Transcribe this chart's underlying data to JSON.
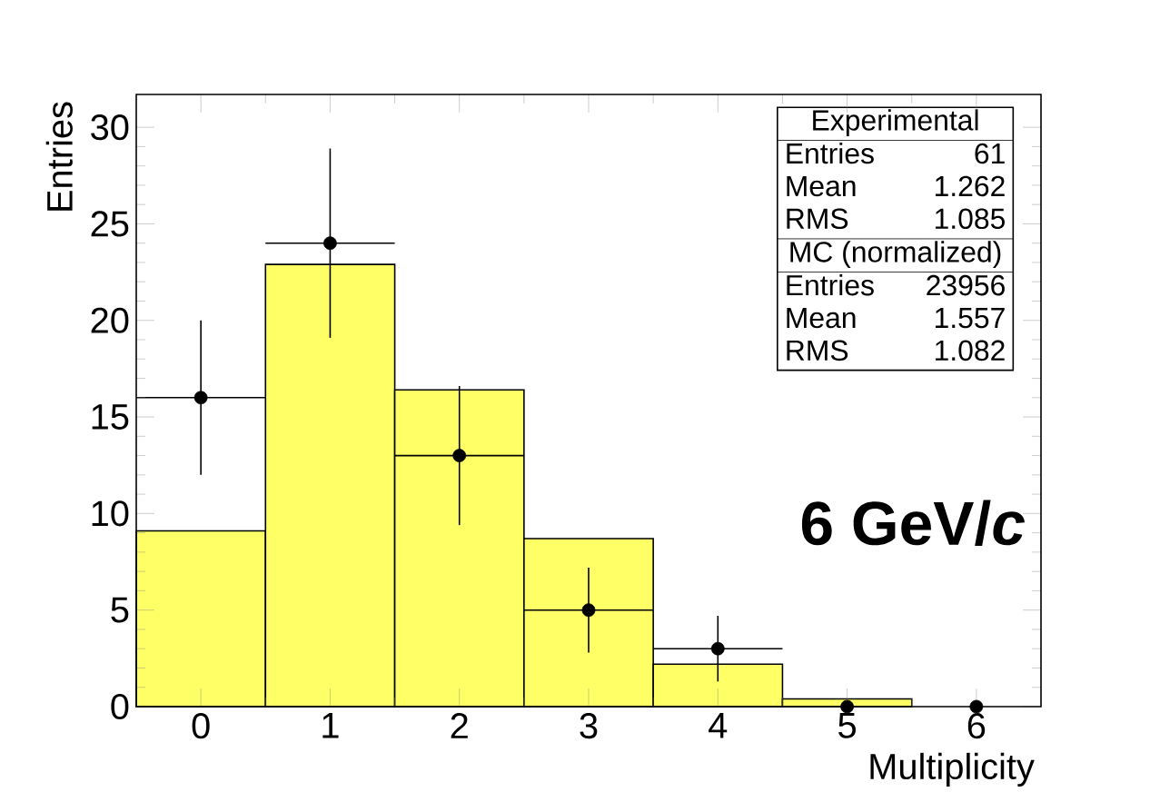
{
  "chart_data": {
    "type": "histogram",
    "xlabel": "Multiplicity",
    "ylabel": "Entries",
    "xlim": [
      -0.5,
      6.5
    ],
    "ylim": [
      0,
      31.7
    ],
    "xticks": [
      0,
      1,
      2,
      3,
      4,
      5,
      6
    ],
    "yticks": [
      0,
      5,
      10,
      15,
      20,
      25,
      30
    ],
    "series": [
      {
        "color": "#ffff66",
        "bins": [
          -0.5,
          0.5,
          1.5,
          2.5,
          3.5,
          4.5,
          5.5,
          6.5
        ],
        "values": [
          9.1,
          22.9,
          16.4,
          8.7,
          2.2,
          0.4,
          null
        ]
      },
      {
        "type": "scatter",
        "color": "#000000",
        "x": [
          0,
          1,
          2,
          3,
          4,
          5,
          6
        ],
        "values": [
          16,
          24,
          13,
          5,
          3,
          0,
          0
        ],
        "errors": [
          4,
          4.9,
          3.6,
          2.2,
          1.7,
          null,
          null
        ],
        "xerrors": [
          0.5,
          0.5,
          0.5,
          0.5,
          0.5,
          null,
          null
        ]
      }
    ],
    "annotations": [
      "Experimental",
      "Entries",
      "61",
      "Mean",
      "1.262",
      "RMS",
      "1.085",
      "MC (normalized)",
      "Entries",
      "23956",
      "Mean",
      "1.557",
      "RMS",
      "1.082",
      "6 GeV/*c*"
    ]
  }
}
